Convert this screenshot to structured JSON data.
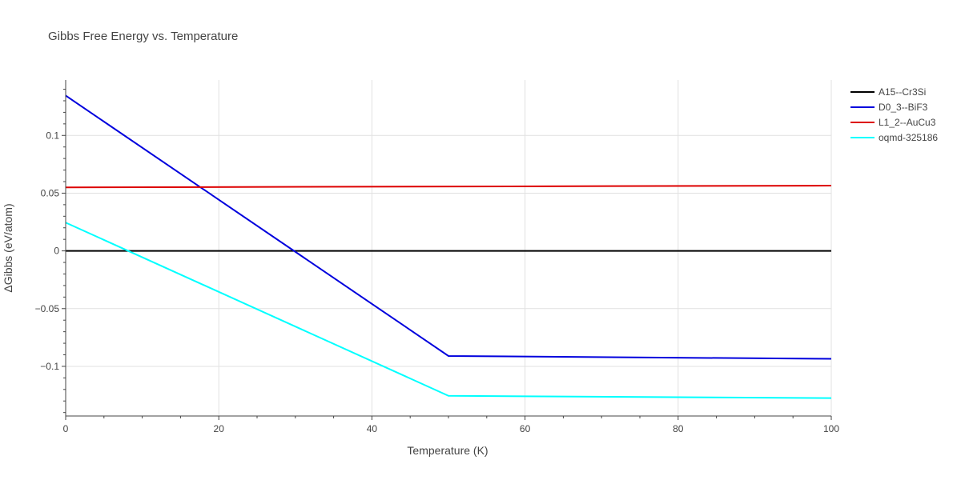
{
  "chart_data": {
    "type": "line",
    "title": "Gibbs Free Energy vs. Temperature",
    "xlabel": "Temperature (K)",
    "ylabel": "ΔGibbs (eV/atom)",
    "xlim": [
      0,
      100
    ],
    "ylim": [
      -0.143,
      0.148
    ],
    "x_ticks": [
      0,
      20,
      40,
      60,
      80,
      100
    ],
    "x_tick_labels": [
      "0",
      "20",
      "40",
      "60",
      "80",
      "100"
    ],
    "y_ticks": [
      -0.1,
      -0.05,
      0,
      0.05,
      0.1
    ],
    "y_tick_labels": [
      "−0.1",
      "−0.05",
      "0",
      "0.05",
      "0.1"
    ],
    "grid": true,
    "legend_position": "top-right",
    "series": [
      {
        "name": "A15--Cr3Si",
        "color": "#000000",
        "x": [
          0,
          100
        ],
        "y": [
          0,
          0
        ]
      },
      {
        "name": "D0_3--BiF3",
        "color": "#0000dd",
        "x": [
          0,
          50,
          100
        ],
        "y": [
          0.1345,
          -0.091,
          -0.0935
        ]
      },
      {
        "name": "L1_2--AuCu3",
        "color": "#dd0000",
        "x": [
          0,
          100
        ],
        "y": [
          0.055,
          0.0565
        ]
      },
      {
        "name": "oqmd-325186",
        "color": "#00ffff",
        "x": [
          0,
          50,
          100
        ],
        "y": [
          0.0245,
          -0.1255,
          -0.1275
        ]
      }
    ]
  }
}
